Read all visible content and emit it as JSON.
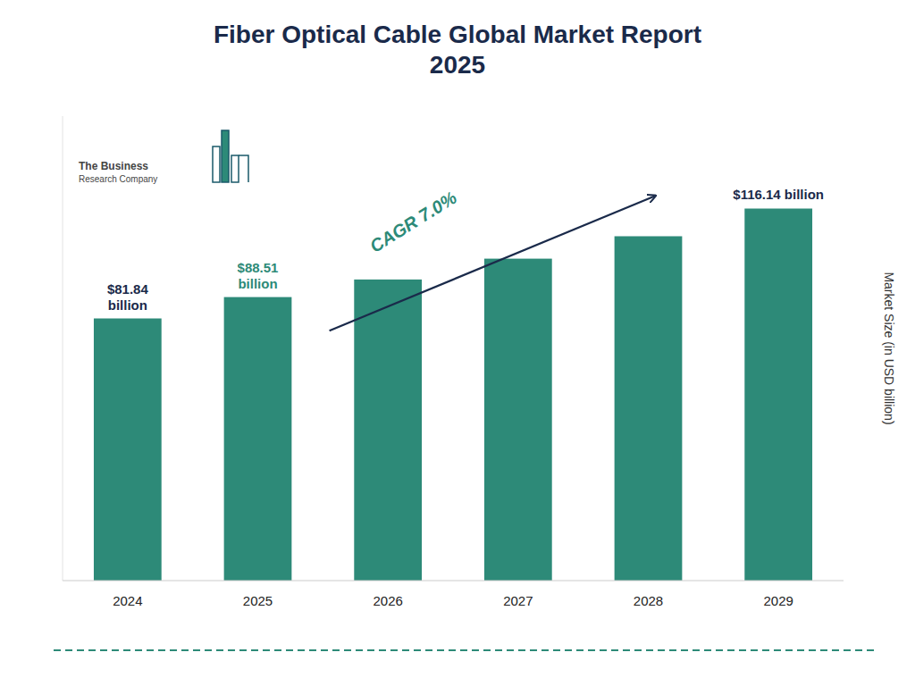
{
  "chart_data": {
    "type": "bar",
    "title": "Fiber Optical Cable Global Market Report\n2025",
    "categories": [
      "2024",
      "2025",
      "2026",
      "2027",
      "2028",
      "2029"
    ],
    "values": [
      81.84,
      88.51,
      94.0,
      100.5,
      107.5,
      116.14
    ],
    "value_labels": [
      "$81.84\nbillion",
      "$88.51\nbillion",
      null,
      null,
      null,
      "$116.14 billion"
    ],
    "color": "#2d8a78",
    "y_label": "Market Size (in USD billion)",
    "ylim": [
      0,
      145
    ],
    "tick_labels": "x",
    "grid": false,
    "annotations": [
      {
        "text": "CAGR 7.0%"
      },
      {
        "text": "The Business"
      },
      {
        "text": "Research Company"
      }
    ]
  }
}
